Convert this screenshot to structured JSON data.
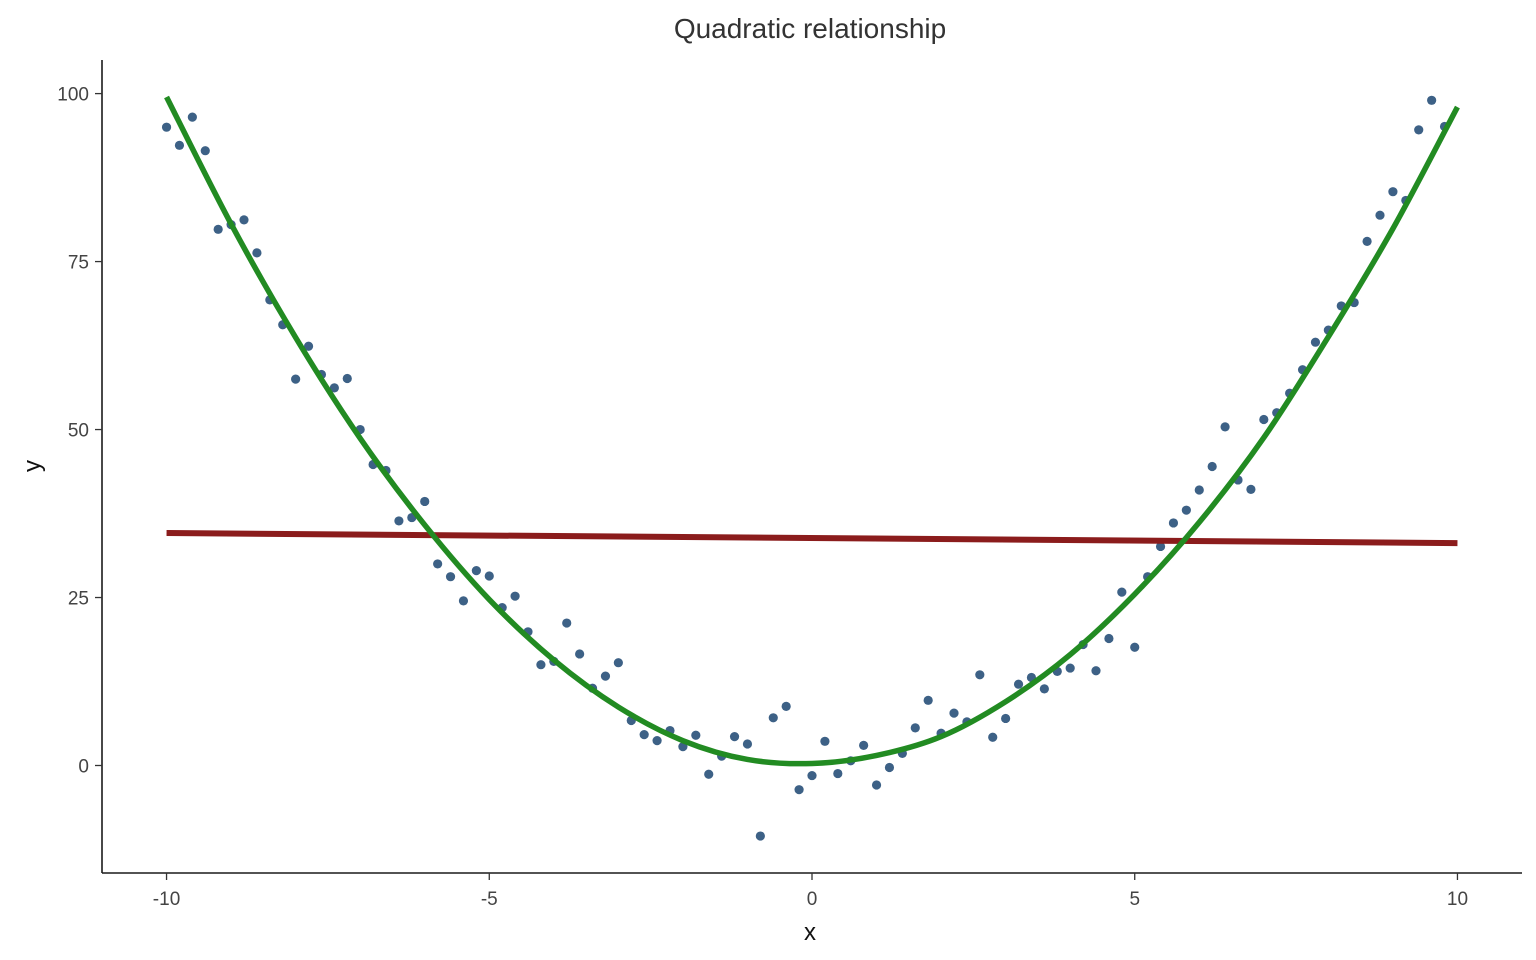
{
  "chart_data": {
    "type": "scatter",
    "title": "Quadratic relationship",
    "xlabel": "x",
    "ylabel": "y",
    "xlim": [
      -11,
      11
    ],
    "ylim": [
      -16,
      105
    ],
    "x_ticks": [
      -10,
      -5,
      0,
      5,
      10
    ],
    "y_ticks": [
      0,
      25,
      50,
      75,
      100
    ],
    "x_tick_labels": [
      "-10",
      "-5",
      "0",
      "5",
      "10"
    ],
    "y_tick_labels": [
      "0",
      "25",
      "50",
      "75",
      "100"
    ],
    "grid": false,
    "legend": "none",
    "colors": {
      "points": "#3d6186",
      "linear_fit": "#8b1c1c",
      "quadratic_fit": "#228b22",
      "axis": "#1a1a1a",
      "text": "#333333"
    },
    "points": [
      [
        -10.0,
        95.0
      ],
      [
        -9.8,
        92.3
      ],
      [
        -9.6,
        96.5
      ],
      [
        -9.4,
        91.5
      ],
      [
        -9.2,
        79.8
      ],
      [
        -9.0,
        80.5
      ],
      [
        -8.8,
        81.2
      ],
      [
        -8.6,
        76.3
      ],
      [
        -8.4,
        69.3
      ],
      [
        -8.2,
        65.6
      ],
      [
        -8.0,
        57.5
      ],
      [
        -7.8,
        62.4
      ],
      [
        -7.6,
        58.2
      ],
      [
        -7.4,
        56.2
      ],
      [
        -7.2,
        57.6
      ],
      [
        -7.0,
        50.0
      ],
      [
        -6.8,
        44.8
      ],
      [
        -6.6,
        43.9
      ],
      [
        -6.4,
        36.4
      ],
      [
        -6.2,
        36.9
      ],
      [
        -6.0,
        39.3
      ],
      [
        -5.8,
        30.0
      ],
      [
        -5.6,
        28.1
      ],
      [
        -5.4,
        24.5
      ],
      [
        -5.2,
        29.0
      ],
      [
        -5.0,
        28.2
      ],
      [
        -4.8,
        23.5
      ],
      [
        -4.6,
        25.2
      ],
      [
        -4.4,
        19.9
      ],
      [
        -4.2,
        15.0
      ],
      [
        -4.0,
        15.5
      ],
      [
        -3.8,
        21.2
      ],
      [
        -3.6,
        16.6
      ],
      [
        -3.4,
        11.5
      ],
      [
        -3.2,
        13.3
      ],
      [
        -3.0,
        15.3
      ],
      [
        -2.8,
        6.7
      ],
      [
        -2.6,
        4.6
      ],
      [
        -2.4,
        3.7
      ],
      [
        -2.2,
        5.2
      ],
      [
        -2.0,
        2.8
      ],
      [
        -1.8,
        4.5
      ],
      [
        -1.6,
        -1.3
      ],
      [
        -1.4,
        1.4
      ],
      [
        -1.2,
        4.3
      ],
      [
        -1.0,
        3.2
      ],
      [
        -0.8,
        -10.5
      ],
      [
        -0.6,
        7.1
      ],
      [
        -0.4,
        8.8
      ],
      [
        -0.2,
        -3.6
      ],
      [
        0.0,
        -1.5
      ],
      [
        0.2,
        3.6
      ],
      [
        0.4,
        -1.2
      ],
      [
        0.6,
        0.7
      ],
      [
        0.8,
        3.0
      ],
      [
        1.0,
        -2.9
      ],
      [
        1.2,
        -0.3
      ],
      [
        1.4,
        1.8
      ],
      [
        1.6,
        5.6
      ],
      [
        1.8,
        9.7
      ],
      [
        2.0,
        4.8
      ],
      [
        2.2,
        7.8
      ],
      [
        2.4,
        6.5
      ],
      [
        2.6,
        13.5
      ],
      [
        2.8,
        4.2
      ],
      [
        3.0,
        7.0
      ],
      [
        3.2,
        12.1
      ],
      [
        3.4,
        13.1
      ],
      [
        3.6,
        11.4
      ],
      [
        3.8,
        14.0
      ],
      [
        4.0,
        14.5
      ],
      [
        4.2,
        18.0
      ],
      [
        4.4,
        14.1
      ],
      [
        4.6,
        18.9
      ],
      [
        4.8,
        25.8
      ],
      [
        5.0,
        17.6
      ],
      [
        5.2,
        28.1
      ],
      [
        5.4,
        32.6
      ],
      [
        5.6,
        36.1
      ],
      [
        5.8,
        38.0
      ],
      [
        6.0,
        41.0
      ],
      [
        6.2,
        44.5
      ],
      [
        6.4,
        50.4
      ],
      [
        6.6,
        42.5
      ],
      [
        6.8,
        41.1
      ],
      [
        7.0,
        51.5
      ],
      [
        7.2,
        52.5
      ],
      [
        7.4,
        55.4
      ],
      [
        7.6,
        58.9
      ],
      [
        7.8,
        63.0
      ],
      [
        8.0,
        64.8
      ],
      [
        8.2,
        68.4
      ],
      [
        8.4,
        68.9
      ],
      [
        8.6,
        78.0
      ],
      [
        8.8,
        81.9
      ],
      [
        9.0,
        85.4
      ],
      [
        9.2,
        84.1
      ],
      [
        9.4,
        94.6
      ],
      [
        9.6,
        99.0
      ],
      [
        9.8,
        95.1
      ]
    ],
    "linear_fit": {
      "x": [
        -10,
        10
      ],
      "y": [
        34.6,
        33.1
      ]
    },
    "quadratic_fit": {
      "x": [
        -10,
        -9,
        -8,
        -7,
        -6,
        -5,
        -4,
        -3,
        -2,
        -1,
        0,
        1,
        2,
        3,
        4,
        5,
        6,
        7,
        8,
        9,
        10
      ],
      "y": [
        99.5,
        80.6,
        63.7,
        48.7,
        35.8,
        24.7,
        15.7,
        8.7,
        3.7,
        0.9,
        0.3,
        1.5,
        4.3,
        9.5,
        16.5,
        25.5,
        36.2,
        48.8,
        63.8,
        79.9,
        98.0
      ]
    }
  }
}
